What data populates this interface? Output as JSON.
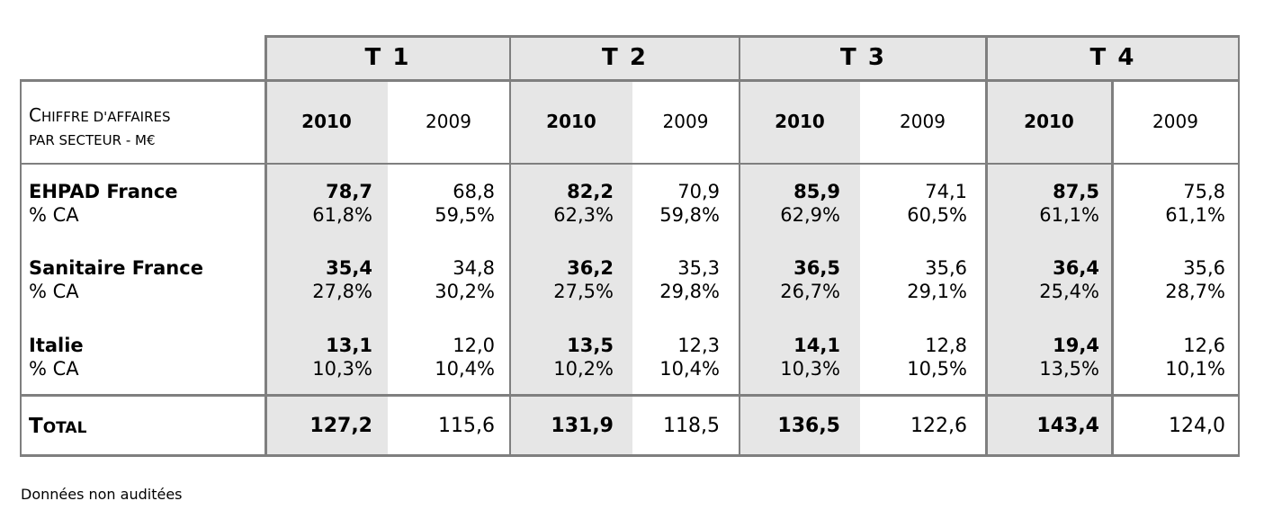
{
  "quarters": [
    "T 1",
    "T 2",
    "T 3",
    "T 4"
  ],
  "years": {
    "current": "2010",
    "previous": "2009"
  },
  "header_label": {
    "line1_cap": "C",
    "line1_rest": "HIFFRE D'AFFAIRES",
    "line2": "PAR SECTEUR - M€"
  },
  "rows": [
    {
      "name": "EHPAD France",
      "sub": "% CA",
      "values": [
        {
          "cur": "78,7",
          "cur_pct": "61,8%",
          "prev": "68,8",
          "prev_pct": "59,5%"
        },
        {
          "cur": "82,2",
          "cur_pct": "62,3%",
          "prev": "70,9",
          "prev_pct": "59,8%"
        },
        {
          "cur": "85,9",
          "cur_pct": "62,9%",
          "prev": "74,1",
          "prev_pct": "60,5%"
        },
        {
          "cur": "87,5",
          "cur_pct": "61,1%",
          "prev": "75,8",
          "prev_pct": "61,1%"
        }
      ]
    },
    {
      "name": "Sanitaire France",
      "sub": "% CA",
      "values": [
        {
          "cur": "35,4",
          "cur_pct": "27,8%",
          "prev": "34,8",
          "prev_pct": "30,2%"
        },
        {
          "cur": "36,2",
          "cur_pct": "27,5%",
          "prev": "35,3",
          "prev_pct": "29,8%"
        },
        {
          "cur": "36,5",
          "cur_pct": "26,7%",
          "prev": "35,6",
          "prev_pct": "29,1%"
        },
        {
          "cur": "36,4",
          "cur_pct": "25,4%",
          "prev": "35,6",
          "prev_pct": "28,7%"
        }
      ]
    },
    {
      "name": "Italie",
      "sub": "% CA",
      "values": [
        {
          "cur": "13,1",
          "cur_pct": "10,3%",
          "prev": "12,0",
          "prev_pct": "10,4%"
        },
        {
          "cur": "13,5",
          "cur_pct": "10,2%",
          "prev": "12,3",
          "prev_pct": "10,4%"
        },
        {
          "cur": "14,1",
          "cur_pct": "10,3%",
          "prev": "12,8",
          "prev_pct": "10,5%"
        },
        {
          "cur": "19,4",
          "cur_pct": "13,5%",
          "prev": "12,6",
          "prev_pct": "10,1%"
        }
      ]
    }
  ],
  "total": {
    "label_cap": "T",
    "label_rest": "OTAL",
    "values": [
      {
        "cur": "127,2",
        "prev": "115,6"
      },
      {
        "cur": "131,9",
        "prev": "118,5"
      },
      {
        "cur": "136,5",
        "prev": "122,6"
      },
      {
        "cur": "143,4",
        "prev": "124,0"
      }
    ]
  },
  "footnote": "Données non auditées"
}
